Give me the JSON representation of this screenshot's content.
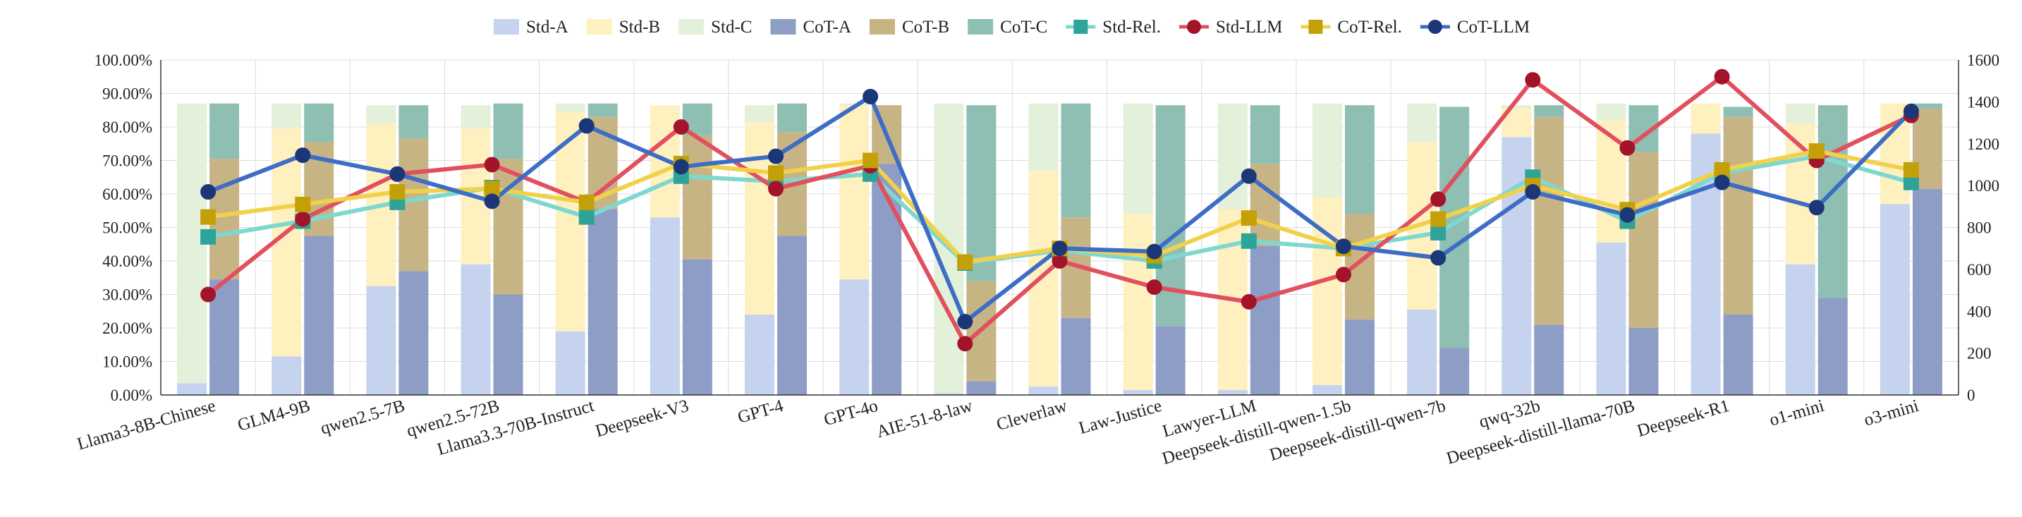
{
  "chart_data": {
    "type": "bar",
    "title": "",
    "xlabel": "",
    "ylabel": "",
    "ylabel_right": "",
    "ylim": [
      0,
      100
    ],
    "y2lim": [
      0,
      1600
    ],
    "y_ticks": [
      "0.00%",
      "10.00%",
      "20.00%",
      "30.00%",
      "40.00%",
      "50.00%",
      "60.00%",
      "70.00%",
      "80.00%",
      "90.00%",
      "100.00%"
    ],
    "y2_ticks": [
      "0",
      "200",
      "400",
      "600",
      "800",
      "1000",
      "1200",
      "1400",
      "1600"
    ],
    "grid": true,
    "legend_position": "top",
    "categories": [
      "Llama3-8B-Chinese",
      "GLM4-9B",
      "qwen2.5-7B",
      "qwen2.5-72B",
      "Llama3.3-70B-Instruct",
      "Deepseek-V3",
      "GPT-4",
      "GPT-4o",
      "AIE-51-8-law",
      "Cleverlaw",
      "Law-Justice",
      "Lawyer-LLM",
      "Deepseek-distill-qwen-1.5b",
      "Deepseek-distill-qwen-7b",
      "qwq-32b",
      "Deepseek-distill-llama-70B",
      "Deepseek-R1",
      "o1-mini",
      "o3-mini"
    ],
    "stacked_groups": [
      {
        "group": "Std",
        "series": [
          {
            "name": "Std-A",
            "color": "#c5d3ee",
            "values": [
              3.5,
              11.5,
              32.5,
              39,
              19,
              53,
              24,
              34.5,
              0.5,
              2.5,
              1.5,
              1.5,
              3,
              25.5,
              77,
              45.5,
              78,
              39,
              57
            ]
          },
          {
            "name": "Std-B",
            "color": "#fff0bf",
            "values": [
              0,
              68,
              48.5,
              40.5,
              65.5,
              33.5,
              57.5,
              52,
              0,
              64.5,
              52.5,
              54,
              56,
              50,
              8.5,
              36.5,
              9,
              42,
              30
            ]
          },
          {
            "name": "Std-C",
            "color": "#e3f0da",
            "values": [
              83.5,
              7.5,
              5.5,
              7,
              2.5,
              0,
              5,
              0.5,
              86.5,
              20,
              33,
              31.5,
              28,
              11.5,
              1,
              5,
              0,
              6,
              0
            ]
          }
        ]
      },
      {
        "group": "CoT",
        "series": [
          {
            "name": "CoT-A",
            "color": "#8d9dc5",
            "values": [
              34.5,
              47.5,
              37,
              30,
              55.5,
              40.5,
              47.5,
              69,
              4,
              23,
              20.5,
              44.5,
              22.5,
              14,
              21,
              20,
              24,
              29,
              61.5
            ]
          },
          {
            "name": "CoT-B",
            "color": "#c7b485",
            "values": [
              36,
              28,
              39.5,
              40.5,
              27.5,
              37,
              31,
              17.5,
              30,
              30,
              0,
              24.5,
              31.5,
              0,
              62,
              52.5,
              59,
              0,
              24
            ]
          },
          {
            "name": "CoT-C",
            "color": "#8fbfb3",
            "values": [
              16.5,
              11.5,
              10,
              16.5,
              4,
              9.5,
              8.5,
              0,
              52.5,
              34,
              66,
              17.5,
              32.5,
              72,
              3.5,
              14,
              3,
              57.5,
              1.5
            ]
          }
        ]
      }
    ],
    "line_series": [
      {
        "name": "Std-Rel.",
        "axis": "right",
        "color": "#7fd8d0",
        "marker": "square",
        "marker_color": "#2ea397",
        "values": [
          755,
          830,
          920,
          990,
          850,
          1045,
          1020,
          1055,
          630,
          690,
          640,
          735,
          700,
          775,
          1040,
          830,
          1060,
          1140,
          1015
        ]
      },
      {
        "name": "Std-LLM",
        "axis": "right",
        "color": "#e0505f",
        "marker": "circle",
        "marker_color": "#a3142a",
        "values": [
          480,
          840,
          1055,
          1100,
          920,
          1280,
          985,
          1095,
          245,
          640,
          515,
          445,
          575,
          935,
          1505,
          1180,
          1520,
          1120,
          1335
        ]
      },
      {
        "name": "CoT-Rel.",
        "axis": "right",
        "color": "#f2d14a",
        "marker": "square",
        "marker_color": "#c4a008",
        "values": [
          850,
          910,
          970,
          985,
          920,
          1105,
          1060,
          1120,
          635,
          700,
          665,
          845,
          700,
          840,
          1000,
          885,
          1075,
          1165,
          1075
        ]
      },
      {
        "name": "CoT-LLM",
        "axis": "right",
        "color": "#3e6dc6",
        "marker": "circle",
        "marker_color": "#1c3778",
        "values": [
          970,
          1145,
          1055,
          925,
          1285,
          1090,
          1140,
          1425,
          350,
          700,
          685,
          1045,
          710,
          655,
          970,
          860,
          1015,
          895,
          1355
        ]
      }
    ]
  }
}
